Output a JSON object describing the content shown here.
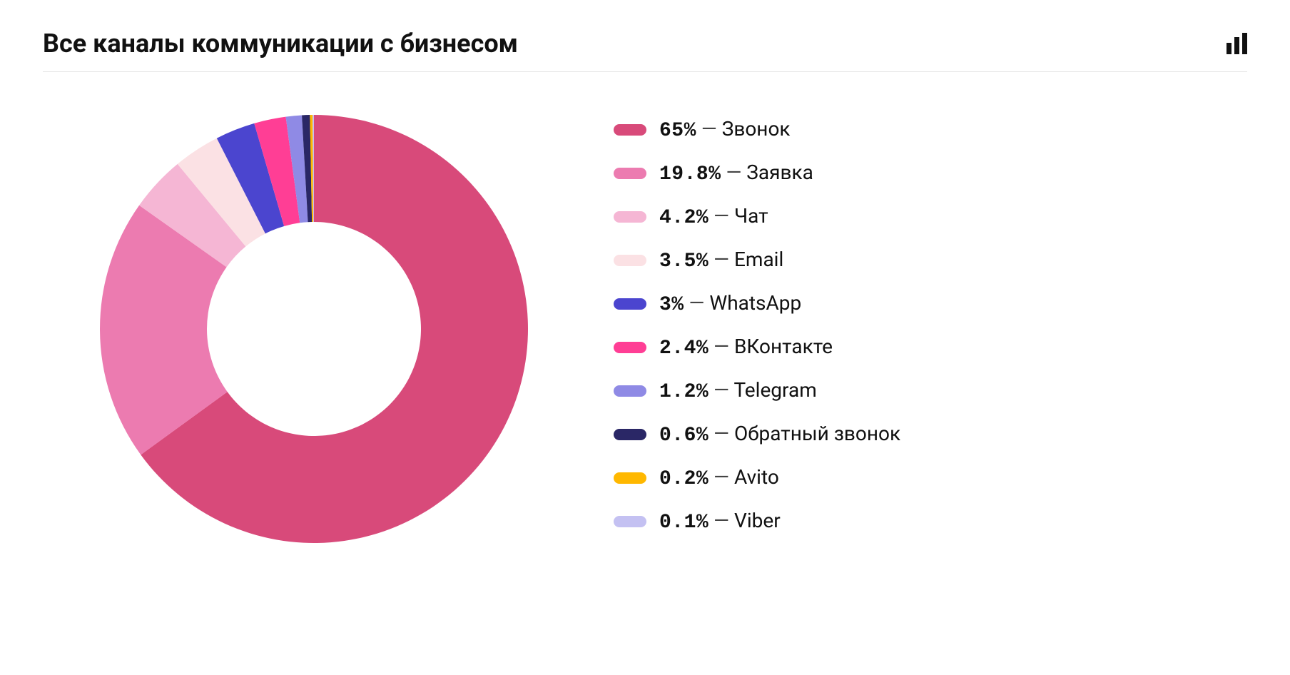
{
  "title": "Все каналы коммуникации с бизнесом",
  "chart": {
    "type": "donut",
    "background_color": "#ffffff",
    "title_fontsize": 36,
    "title_color": "#111111",
    "divider_color": "#e5e5e5",
    "outer_radius": 300,
    "inner_radius": 150,
    "center_color": "#ffffff",
    "start_angle_deg": -90,
    "direction": "clockwise",
    "legend_position": "right",
    "legend_fontsize": 28,
    "swatch_width": 46,
    "swatch_height": 16,
    "swatch_radius": 8,
    "percent_font_family": "monospace",
    "separator": " — ",
    "segments": [
      {
        "value": 65.0,
        "percent_label": "65%",
        "label": "Звонок",
        "color": "#d84a7a"
      },
      {
        "value": 19.8,
        "percent_label": "19.8%",
        "label": "Заявка",
        "color": "#ec7bb0"
      },
      {
        "value": 4.2,
        "percent_label": "4.2%",
        "label": "Чат",
        "color": "#f5b6d4"
      },
      {
        "value": 3.5,
        "percent_label": "3.5%",
        "label": "Email",
        "color": "#fbe1e4"
      },
      {
        "value": 3.0,
        "percent_label": "3%",
        "label": "WhatsApp",
        "color": "#4b45cf"
      },
      {
        "value": 2.4,
        "percent_label": "2.4%",
        "label": "ВКонтакте",
        "color": "#ff3e95"
      },
      {
        "value": 1.2,
        "percent_label": "1.2%",
        "label": "Telegram",
        "color": "#8f8ae5"
      },
      {
        "value": 0.6,
        "percent_label": "0.6%",
        "label": "Обратный звонок",
        "color": "#2a2766"
      },
      {
        "value": 0.2,
        "percent_label": "0.2%",
        "label": "Avito",
        "color": "#ffb800"
      },
      {
        "value": 0.1,
        "percent_label": "0.1%",
        "label": "Viber",
        "color": "#c4c1f2"
      }
    ],
    "icon_bar_heights": [
      16,
      24,
      30
    ]
  }
}
